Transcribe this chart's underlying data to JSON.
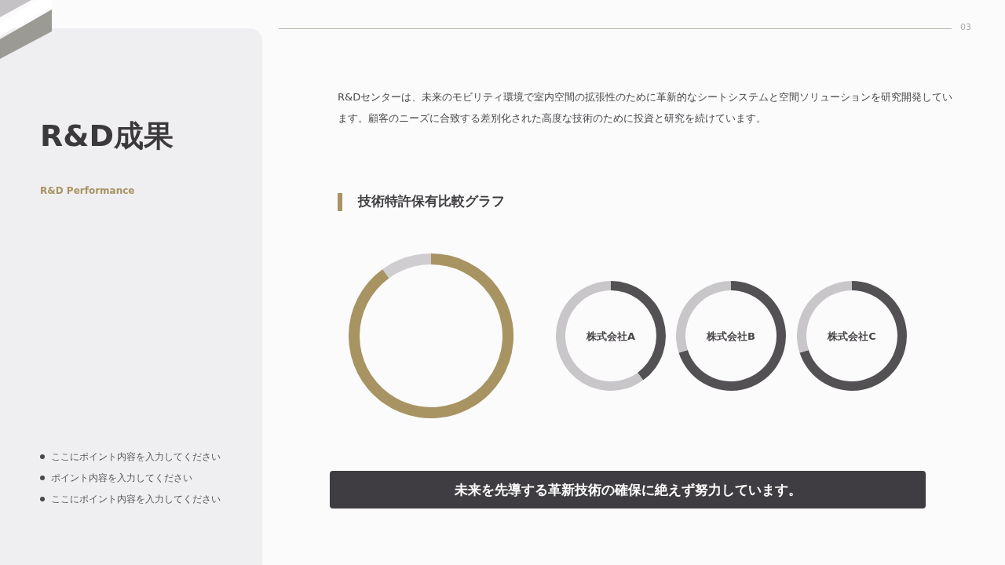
{
  "chart_data": [
    {
      "type": "other",
      "title": "R&D成果",
      "subtitle": "R&D Performance",
      "annotations": [
        "R&Dセンターは、未来のモビリティ環境で室内空間の拡張性のために革新的なシートシステムと空間ソリューションを研究開発しています。顧客のニーズに合致する差別化された高度な技術のために投資と研究を続けています。",
        "技術特許保有比較グラフ",
        "ここにポイント内容を入力してください",
        "ポイント内容を入力してください",
        "ここにポイント内容を入力してください",
        "未来を先導する革新技術の確保に絶えず努力しています。",
        "03"
      ]
    },
    {
      "type": "donut",
      "categories": [
        null,
        null
      ],
      "values": [
        90,
        10
      ],
      "colors": [
        "#a89362",
        "#cfcdd0"
      ]
    },
    {
      "type": "donut",
      "title": "株式会社A",
      "categories": [
        null,
        null
      ],
      "values": [
        40,
        60
      ],
      "colors": [
        "#545155",
        "#c8c6c9"
      ]
    },
    {
      "type": "donut",
      "title": "株式会社B",
      "categories": [
        null,
        null
      ],
      "values": [
        70,
        30
      ],
      "colors": [
        "#545155",
        "#c8c6c9"
      ]
    },
    {
      "type": "donut",
      "title": "株式会社C",
      "categories": [
        null,
        null
      ],
      "values": [
        70,
        30
      ],
      "colors": [
        "#545155",
        "#c8c6c9"
      ]
    }
  ]
}
